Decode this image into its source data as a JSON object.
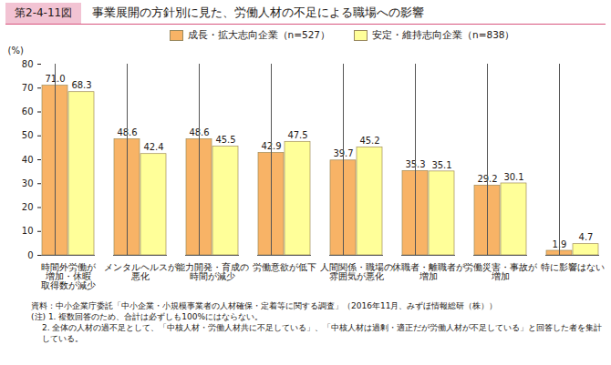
{
  "chart_data": {
    "type": "bar",
    "figure_number": "第2-4-11図",
    "title": "事業展開の方針別に見た、労働人材の不足による職場への影響",
    "y_label": "(%)",
    "categories": [
      "時間外労働が\n増加・休暇\n取得数が減少",
      "メンタルヘルスが\n悪化",
      "能力開発・育成の\n時間が減少",
      "労働意欲が低下",
      "人間関係・職場の\n雰囲気が悪化",
      "休職者・離職者が\n増加",
      "労働災害・事故が\n増加",
      "特に影響はない"
    ],
    "series": [
      {
        "name": "成長・拡大志向企業（n=527）",
        "color": "#f8b366",
        "values": [
          71.0,
          48.6,
          48.6,
          42.9,
          39.7,
          35.3,
          29.2,
          1.9
        ],
        "value_labels": [
          "71.0",
          "48.6",
          "48.6",
          "42.9",
          "39.7",
          "35.3",
          "29.2",
          "1.9"
        ]
      },
      {
        "name": "安定・維持志向企業（n=838）",
        "color": "#ffff99",
        "values": [
          68.3,
          42.4,
          45.5,
          47.5,
          45.2,
          35.1,
          30.1,
          4.7
        ],
        "value_labels": [
          "68.3",
          "42.4",
          "45.5",
          "47.5",
          "45.2",
          "35.1",
          "30.1",
          "4.7"
        ]
      }
    ],
    "ylim": [
      0,
      80
    ],
    "yticks": [
      0,
      10,
      20,
      30,
      40,
      50,
      60,
      70,
      80
    ],
    "grid": false,
    "data_labels": true,
    "legend": "top",
    "notes": [
      "資料：中小企業庁委託「中小企業・小規模事業者の人材確保・定着等に関する調査」（2016年11月、みずほ情報総研（株））",
      "(注) 1. 複数回答のため、合計は必ずしも100%にはならない。",
      "2. 全体の人材の過不足として、「中核人材・労働人材共に不足している」、「中核人材は過剰・適正だが労働人材が不足している」と回答した者を集計している。"
    ]
  }
}
